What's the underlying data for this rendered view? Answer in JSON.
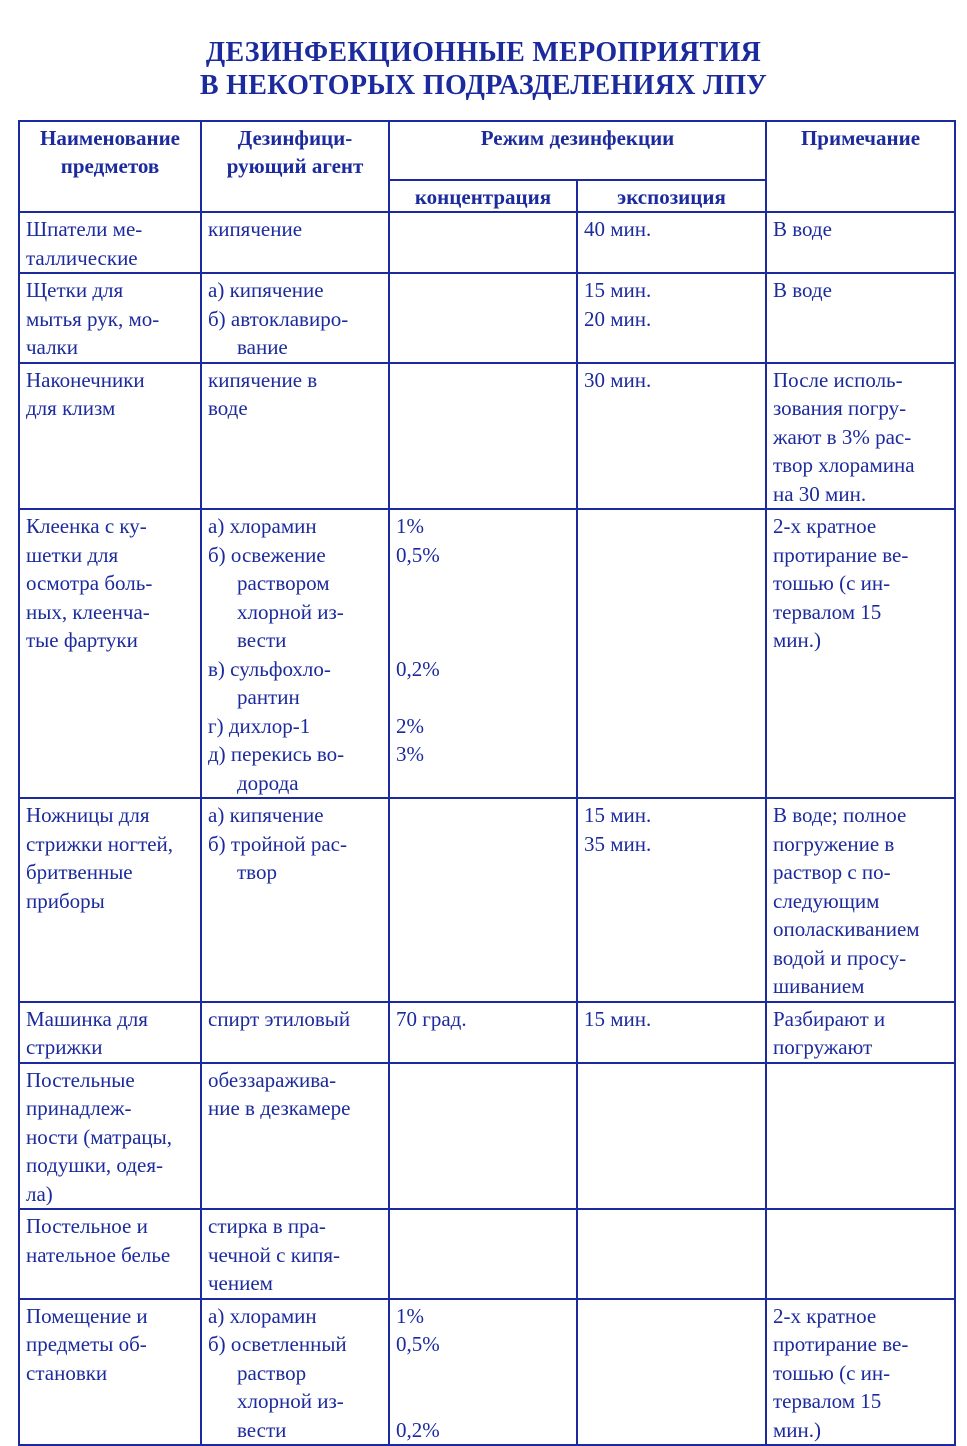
{
  "title_line1": "ДЕЗИНФЕКЦИОННЫЕ МЕРОПРИЯТИЯ",
  "title_line2": "В НЕКОТОРЫХ ПОДРАЗДЕЛЕНИЯХ ЛПУ",
  "header": {
    "item": [
      "Наименование",
      "предметов"
    ],
    "agent": [
      "Дезинфици-",
      "рующий агент"
    ],
    "mode": "Режим дезинфекции",
    "concentration": "концентрация",
    "exposure": "экспозиция",
    "note": "Примечание"
  },
  "rows": [
    {
      "item": [
        "Шпатели ме-",
        "таллические"
      ],
      "agent": [
        "кипячение"
      ],
      "conc": [],
      "exp": [
        "40 мин."
      ],
      "note": [
        "В воде"
      ]
    },
    {
      "item": [
        "Щетки для",
        "мытья рук, мо-",
        "чалки"
      ],
      "agent": [
        "а) кипячение",
        "б) автоклавиро-",
        "вание"
      ],
      "conc": [],
      "exp": [
        "15 мин.",
        "20 мин."
      ],
      "note": [
        "В воде"
      ]
    },
    {
      "item": [
        "Наконечники",
        "для клизм"
      ],
      "agent": [
        "кипячение в",
        "воде"
      ],
      "conc": [],
      "exp": [
        "30 мин."
      ],
      "note": [
        "После исполь-",
        "зования погру-",
        "жают в 3% рас-",
        "твор хлорамина",
        "на 30 мин."
      ]
    },
    {
      "item": [
        "Клеенка с ку-",
        "шетки для",
        "осмотра боль-",
        "ных, клеенча-",
        "тые фартуки"
      ],
      "agent": [
        "а) хлорамин",
        "б) освежение",
        "раствором",
        "хлорной из-",
        "вести",
        "в) сульфохло-",
        "рантин",
        "г) дихлор-1",
        "д) перекись во-",
        "дорода"
      ],
      "conc": [
        "1%",
        "0,5%",
        "",
        "",
        "",
        "0,2%",
        "",
        "2%",
        "3%"
      ],
      "exp": [],
      "note": [
        "2-х кратное",
        "протирание ве-",
        "тошью (с ин-",
        "тервалом 15",
        "мин.)"
      ]
    },
    {
      "item": [
        "Ножницы для",
        "стрижки ногтей,",
        "бритвенные",
        "приборы"
      ],
      "agent": [
        "а) кипячение",
        "б) тройной рас-",
        "твор"
      ],
      "conc": [],
      "exp": [
        "15 мин.",
        "35 мин."
      ],
      "note": [
        "В воде; полное",
        "погружение в",
        "раствор с по-",
        "следующим",
        "ополаскиванием",
        "водой и просу-",
        "шиванием"
      ]
    },
    {
      "item": [
        "Машинка для",
        "стрижки"
      ],
      "agent": [
        "спирт этиловый"
      ],
      "conc": [
        "70 град."
      ],
      "exp": [
        "15 мин."
      ],
      "note": [
        "Разбирают и",
        "погружают"
      ]
    },
    {
      "item": [
        "Постельные",
        "принадлеж-",
        "ности (матрацы,",
        "подушки, одея-",
        "ла)"
      ],
      "agent": [
        "обеззаражива-",
        "ние в дезкамере"
      ],
      "conc": [],
      "exp": [],
      "note": []
    },
    {
      "item": [
        "Постельное и",
        "нательное белье"
      ],
      "agent": [
        "стирка в пра-",
        "чечной с кипя-",
        "чением"
      ],
      "conc": [],
      "exp": [],
      "note": []
    },
    {
      "item": [
        "Помещение и",
        "предметы об-",
        "становки"
      ],
      "agent": [
        "а) хлорамин",
        "б) осветленный",
        "раствор",
        "хлорной из-",
        "вести"
      ],
      "conc": [
        "1%",
        "0,5%",
        "",
        "",
        "0,2%"
      ],
      "exp": [],
      "note": [
        "2-х кратное",
        "протирание ве-",
        "тошью (с ин-",
        "тервалом 15",
        "мин.)"
      ]
    }
  ]
}
